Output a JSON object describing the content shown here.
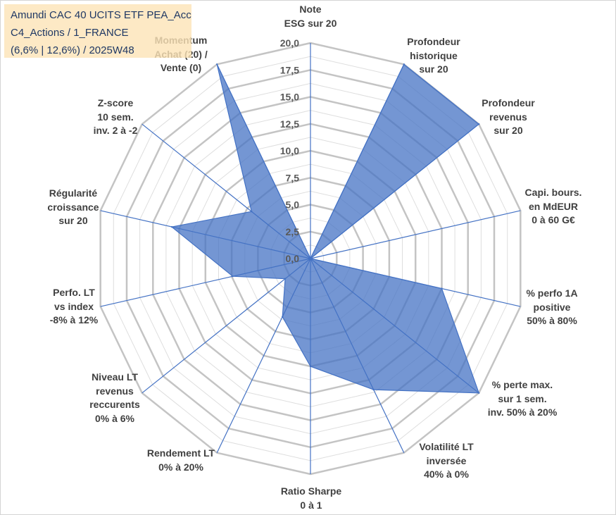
{
  "chart_data": {
    "type": "radar",
    "title_lines": [
      "Amundi CAC 40 UCITS ETF PEA_Acc",
      "C4_Actions / 1_FRANCE",
      "(6,6% | 12,6%) / 2025W48"
    ],
    "categories": [
      "Note\nESG sur 20",
      "Profondeur\nhistorique\nsur 20",
      "Profondeur\nrevenus\nsur 20",
      "Capi. bours.\nen MdEUR\n0 à 60 G€",
      "% perfo 1A\npositive\n50% à 80%",
      "% perte max.\nsur 1 sem.\ninv. 50% à 20%",
      "Volatilité LT\ninversée\n40% à 0%",
      "Ratio Sharpe\n0 à 1",
      "Rendement LT\n0% à 20%",
      "Niveau LT\nrevenus\nreccurents\n0% à 6%",
      "Perfo. LT\nvs index\n-8% à 12%",
      "Régularité\ncroissance\nsur 20",
      "Z-score\n10 sem.\ninv. 2 à -2",
      "Momentum\nAchat (20) /\nVente (0)"
    ],
    "values": [
      0,
      20,
      20,
      0,
      12.5,
      20,
      13.5,
      10,
      6,
      3,
      7.4,
      13.2,
      7,
      20
    ],
    "ylim": [
      0,
      20
    ],
    "y_ticks": [
      0,
      2.5,
      5,
      7.5,
      10,
      12.5,
      15,
      17.5,
      20
    ],
    "y_tick_labels": [
      "0,0",
      "2,5",
      "5,0",
      "7,5",
      "10,0",
      "12,5",
      "15,0",
      "17,5",
      "20,0"
    ],
    "grid": true,
    "colors": {
      "series": "#4472C4",
      "grid": "#C4C4C4",
      "minor_grid": "#DEDEDE",
      "title_background": "#FCE4B6",
      "title_text": "#1F3864",
      "label_text": "#404040",
      "tick_text": "#595959"
    }
  }
}
